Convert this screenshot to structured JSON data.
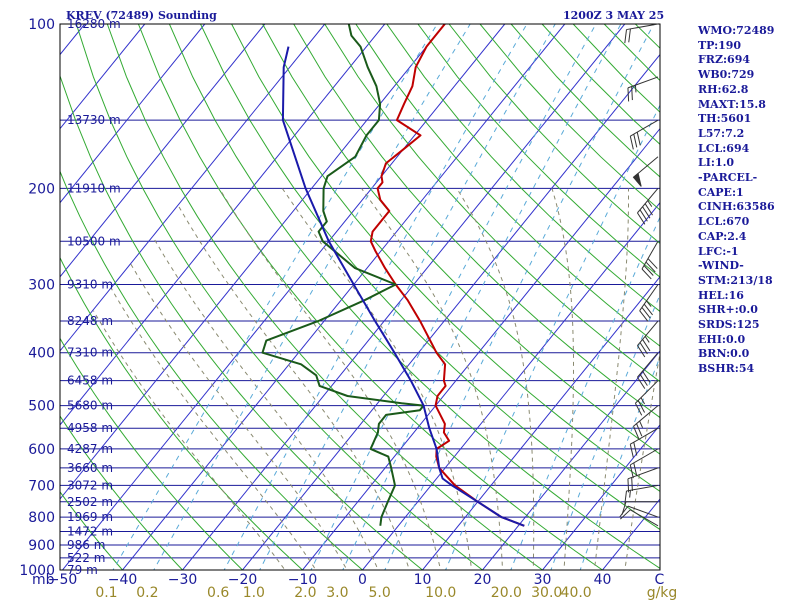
{
  "header": {
    "station": "KREV (72489) Sounding",
    "time": "1200Z  3 MAY 25"
  },
  "indices": [
    "WMO:72489",
    "TP:190",
    "FRZ:694",
    "WB0:729",
    "RH:62.8",
    "MAXT:15.8",
    "TH:5601",
    "L57:7.2",
    "LCL:694",
    "LI:1.0",
    "-PARCEL-",
    "CAPE:1",
    "CINH:63586",
    "LCL:670",
    "CAP:2.4",
    "LFC:-1",
    "-WIND-",
    "STM:213/18",
    "HEL:16",
    "SHR+:0.0",
    "SRDS:125",
    "EHI:0.0",
    "BRN:0.0",
    "BSHR:54"
  ],
  "colors": {
    "isobar": "#1a1a99",
    "isotherm": "#3333cc",
    "dry_adiabat": "#33aa33",
    "mixing_ratio": "#5aaad8",
    "moist_adiabat": "#8a8a70",
    "temperature": "#c00000",
    "dewpoint": "#1a5a1a",
    "parcel": "#1a1aaa",
    "wind": "#333333"
  },
  "chart_data": {
    "type": "line",
    "title": "KREV (72489) Sounding",
    "x_axis": {
      "label": "C",
      "min": -50,
      "max": 50,
      "ticks": [
        -50,
        -40,
        -30,
        -20,
        -10,
        0,
        10,
        20,
        30,
        40
      ]
    },
    "y_axis": {
      "label": "mb",
      "scale": "log",
      "min": 1000,
      "max": 100,
      "ticks": [
        100,
        200,
        300,
        400,
        500,
        600,
        700,
        800,
        900,
        1000
      ]
    },
    "height_labels": [
      {
        "p": 100,
        "label": "16280 m"
      },
      {
        "p": 150,
        "label": "13730 m"
      },
      {
        "p": 200,
        "label": "11910 m"
      },
      {
        "p": 250,
        "label": "10500 m"
      },
      {
        "p": 300,
        "label": "9310 m"
      },
      {
        "p": 350,
        "label": "8248 m"
      },
      {
        "p": 400,
        "label": "7310 m"
      },
      {
        "p": 450,
        "label": "6458 m"
      },
      {
        "p": 500,
        "label": "5680 m"
      },
      {
        "p": 550,
        "label": "4958 m"
      },
      {
        "p": 600,
        "label": "4287 m"
      },
      {
        "p": 650,
        "label": "3660 m"
      },
      {
        "p": 700,
        "label": "3072 m"
      },
      {
        "p": 750,
        "label": "2502 m"
      },
      {
        "p": 800,
        "label": "1969 m"
      },
      {
        "p": 850,
        "label": "1472 m"
      },
      {
        "p": 900,
        "label": "986 m"
      },
      {
        "p": 950,
        "label": "522 m"
      },
      {
        "p": 1000,
        "label": "79 m"
      }
    ],
    "mixing_ratio_labels": [
      "0.1",
      "0.2",
      "0.6",
      "1.0",
      "2.0",
      "3.0",
      "5.0",
      "10.0",
      "20.0",
      "30.0",
      "40.0",
      "g/kg"
    ],
    "series": [
      {
        "name": "temperature",
        "points": [
          [
            830,
            21
          ],
          [
            800,
            16
          ],
          [
            750,
            10
          ],
          [
            700,
            4
          ],
          [
            650,
            -1
          ],
          [
            620,
            -3
          ],
          [
            600,
            -4
          ],
          [
            580,
            -3
          ],
          [
            560,
            -5
          ],
          [
            540,
            -6
          ],
          [
            500,
            -10
          ],
          [
            480,
            -11
          ],
          [
            460,
            -11
          ],
          [
            450,
            -12
          ],
          [
            420,
            -14
          ],
          [
            400,
            -17
          ],
          [
            350,
            -24
          ],
          [
            320,
            -29
          ],
          [
            300,
            -33
          ],
          [
            280,
            -37
          ],
          [
            260,
            -41
          ],
          [
            250,
            -43
          ],
          [
            240,
            -44
          ],
          [
            230,
            -44
          ],
          [
            220,
            -44
          ],
          [
            210,
            -47
          ],
          [
            200,
            -49
          ],
          [
            195,
            -49
          ],
          [
            190,
            -50
          ],
          [
            180,
            -51
          ],
          [
            170,
            -50
          ],
          [
            160,
            -49
          ],
          [
            150,
            -55
          ],
          [
            140,
            -56
          ],
          [
            130,
            -57
          ],
          [
            120,
            -59
          ],
          [
            110,
            -60
          ],
          [
            100,
            -60
          ],
          [
            95,
            -60
          ]
        ]
      },
      {
        "name": "dewpoint",
        "points": [
          [
            830,
            -3
          ],
          [
            800,
            -4
          ],
          [
            750,
            -5
          ],
          [
            700,
            -6
          ],
          [
            650,
            -9
          ],
          [
            620,
            -11
          ],
          [
            600,
            -15
          ],
          [
            560,
            -16
          ],
          [
            540,
            -17
          ],
          [
            520,
            -17
          ],
          [
            510,
            -12
          ],
          [
            500,
            -12
          ],
          [
            495,
            -16
          ],
          [
            480,
            -26
          ],
          [
            460,
            -32
          ],
          [
            440,
            -34
          ],
          [
            420,
            -38
          ],
          [
            400,
            -46
          ],
          [
            380,
            -47
          ],
          [
            350,
            -41
          ],
          [
            320,
            -36
          ],
          [
            300,
            -33
          ],
          [
            280,
            -42
          ],
          [
            250,
            -51
          ],
          [
            240,
            -53
          ],
          [
            230,
            -53
          ],
          [
            220,
            -55
          ],
          [
            200,
            -58
          ],
          [
            190,
            -59
          ],
          [
            175,
            -57
          ],
          [
            160,
            -58
          ],
          [
            150,
            -58
          ],
          [
            140,
            -60
          ],
          [
            130,
            -63
          ],
          [
            120,
            -67
          ],
          [
            110,
            -71
          ],
          [
            105,
            -74
          ],
          [
            100,
            -76
          ]
        ]
      },
      {
        "name": "parcel",
        "points": [
          [
            830,
            21
          ],
          [
            800,
            16
          ],
          [
            750,
            10
          ],
          [
            700,
            3.5
          ],
          [
            680,
            1
          ],
          [
            650,
            -1
          ],
          [
            600,
            -4
          ],
          [
            550,
            -8
          ],
          [
            500,
            -12
          ],
          [
            450,
            -17.5
          ],
          [
            400,
            -24
          ],
          [
            350,
            -31.5
          ],
          [
            300,
            -40
          ],
          [
            250,
            -50
          ],
          [
            200,
            -61
          ],
          [
            150,
            -74
          ],
          [
            120,
            -81
          ],
          [
            110,
            -83
          ]
        ]
      }
    ],
    "wind_barbs": [
      {
        "p": 830,
        "dir": 300,
        "spd": 10
      },
      {
        "p": 800,
        "dir": 290,
        "spd": 10
      },
      {
        "p": 750,
        "dir": 270,
        "spd": 10
      },
      {
        "p": 700,
        "dir": 260,
        "spd": 15
      },
      {
        "p": 650,
        "dir": 250,
        "spd": 20
      },
      {
        "p": 600,
        "dir": 240,
        "spd": 20
      },
      {
        "p": 550,
        "dir": 240,
        "spd": 20
      },
      {
        "p": 500,
        "dir": 230,
        "spd": 25
      },
      {
        "p": 450,
        "dir": 225,
        "spd": 25
      },
      {
        "p": 400,
        "dir": 220,
        "spd": 30
      },
      {
        "p": 350,
        "dir": 220,
        "spd": 35
      },
      {
        "p": 300,
        "dir": 215,
        "spd": 35
      },
      {
        "p": 250,
        "dir": 210,
        "spd": 40
      },
      {
        "p": 200,
        "dir": 220,
        "spd": 45
      },
      {
        "p": 175,
        "dir": 230,
        "spd": 50
      },
      {
        "p": 150,
        "dir": 240,
        "spd": 30
      },
      {
        "p": 125,
        "dir": 250,
        "spd": 25
      },
      {
        "p": 100,
        "dir": 260,
        "spd": 20
      }
    ]
  }
}
